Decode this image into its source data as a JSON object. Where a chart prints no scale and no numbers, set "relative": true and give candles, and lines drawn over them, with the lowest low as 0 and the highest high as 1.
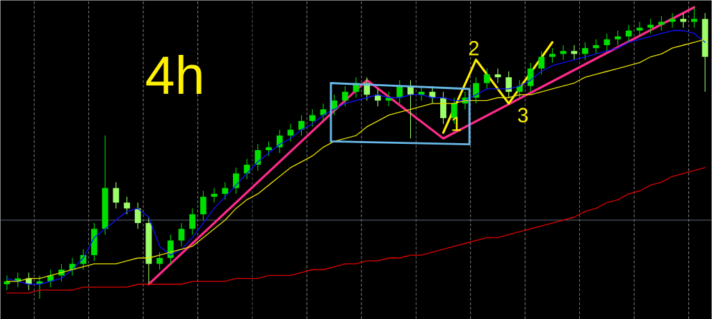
{
  "chart_data": {
    "type": "candlestick",
    "relative": true,
    "grid": "x",
    "categories": [
      null,
      null,
      null,
      null,
      null,
      null,
      null,
      null,
      null,
      null,
      null,
      null,
      null,
      null,
      null,
      null,
      null,
      null,
      null,
      null,
      null,
      null,
      null,
      null,
      null,
      null,
      null,
      null,
      null,
      null,
      null,
      null,
      null,
      null,
      null,
      null,
      null,
      null,
      null,
      null,
      null,
      null,
      null,
      null,
      null,
      null,
      null,
      null,
      null,
      null,
      null,
      null,
      null,
      null,
      null,
      null,
      null,
      null,
      null,
      null,
      null,
      null,
      null,
      null,
      null
    ],
    "ohlc": [
      [
        0.05,
        0.08,
        0.03,
        0.06
      ],
      [
        0.06,
        0.09,
        0.04,
        0.07
      ],
      [
        0.07,
        0.09,
        0.03,
        0.05
      ],
      [
        0.05,
        0.08,
        0.0,
        0.06
      ],
      [
        0.06,
        0.1,
        0.04,
        0.08
      ],
      [
        0.08,
        0.12,
        0.06,
        0.1
      ],
      [
        0.1,
        0.14,
        0.08,
        0.12
      ],
      [
        0.12,
        0.17,
        0.1,
        0.15
      ],
      [
        0.15,
        0.26,
        0.13,
        0.24
      ],
      [
        0.24,
        0.56,
        0.22,
        0.38
      ],
      [
        0.38,
        0.4,
        0.31,
        0.33
      ],
      [
        0.33,
        0.35,
        0.29,
        0.31
      ],
      [
        0.31,
        0.33,
        0.24,
        0.26
      ],
      [
        0.26,
        0.28,
        0.05,
        0.12
      ],
      [
        0.12,
        0.16,
        0.1,
        0.14
      ],
      [
        0.14,
        0.22,
        0.12,
        0.2
      ],
      [
        0.2,
        0.26,
        0.18,
        0.24
      ],
      [
        0.24,
        0.31,
        0.22,
        0.29
      ],
      [
        0.29,
        0.37,
        0.27,
        0.35
      ],
      [
        0.35,
        0.38,
        0.33,
        0.36
      ],
      [
        0.36,
        0.4,
        0.34,
        0.38
      ],
      [
        0.38,
        0.45,
        0.36,
        0.43
      ],
      [
        0.43,
        0.48,
        0.41,
        0.46
      ],
      [
        0.46,
        0.53,
        0.44,
        0.51
      ],
      [
        0.51,
        0.54,
        0.49,
        0.52
      ],
      [
        0.52,
        0.58,
        0.5,
        0.56
      ],
      [
        0.56,
        0.6,
        0.54,
        0.58
      ],
      [
        0.58,
        0.63,
        0.56,
        0.61
      ],
      [
        0.61,
        0.65,
        0.59,
        0.63
      ],
      [
        0.63,
        0.67,
        0.61,
        0.65
      ],
      [
        0.65,
        0.7,
        0.63,
        0.68
      ],
      [
        0.68,
        0.73,
        0.66,
        0.71
      ],
      [
        0.71,
        0.76,
        0.69,
        0.74
      ],
      [
        0.74,
        0.76,
        0.68,
        0.7
      ],
      [
        0.7,
        0.72,
        0.66,
        0.68
      ],
      [
        0.68,
        0.71,
        0.66,
        0.69
      ],
      [
        0.69,
        0.75,
        0.67,
        0.73
      ],
      [
        0.73,
        0.75,
        0.55,
        0.7
      ],
      [
        0.7,
        0.73,
        0.68,
        0.71
      ],
      [
        0.71,
        0.73,
        0.67,
        0.69
      ],
      [
        0.69,
        0.71,
        0.6,
        0.62
      ],
      [
        0.62,
        0.69,
        0.6,
        0.67
      ],
      [
        0.67,
        0.71,
        0.65,
        0.69
      ],
      [
        0.69,
        0.76,
        0.67,
        0.74
      ],
      [
        0.74,
        0.79,
        0.72,
        0.77
      ],
      [
        0.77,
        0.79,
        0.74,
        0.76
      ],
      [
        0.76,
        0.78,
        0.69,
        0.71
      ],
      [
        0.71,
        0.75,
        0.69,
        0.73
      ],
      [
        0.73,
        0.81,
        0.71,
        0.79
      ],
      [
        0.79,
        0.85,
        0.77,
        0.83
      ],
      [
        0.83,
        0.86,
        0.81,
        0.84
      ],
      [
        0.84,
        0.87,
        0.82,
        0.85
      ],
      [
        0.85,
        0.87,
        0.82,
        0.84
      ],
      [
        0.84,
        0.88,
        0.82,
        0.86
      ],
      [
        0.86,
        0.89,
        0.84,
        0.87
      ],
      [
        0.87,
        0.91,
        0.85,
        0.89
      ],
      [
        0.89,
        0.92,
        0.87,
        0.9
      ],
      [
        0.9,
        0.94,
        0.88,
        0.92
      ],
      [
        0.92,
        0.95,
        0.9,
        0.93
      ],
      [
        0.93,
        0.96,
        0.91,
        0.94
      ],
      [
        0.94,
        0.97,
        0.92,
        0.95
      ],
      [
        0.95,
        0.98,
        0.93,
        0.96
      ],
      [
        0.96,
        0.98,
        0.93,
        0.95
      ],
      [
        0.95,
        1.0,
        0.93,
        0.96
      ],
      [
        0.96,
        0.98,
        0.71,
        0.83
      ]
    ],
    "series": [
      {
        "type": "line",
        "color": "#1010ff",
        "values": [
          0.07,
          0.06,
          0.05,
          0.05,
          0.06,
          0.07,
          0.1,
          0.14,
          0.21,
          0.24,
          0.27,
          0.3,
          0.31,
          0.28,
          0.18,
          0.15,
          0.17,
          0.21,
          0.26,
          0.31,
          0.35,
          0.39,
          0.43,
          0.47,
          0.5,
          0.53,
          0.55,
          0.58,
          0.6,
          0.63,
          0.65,
          0.67,
          0.68,
          0.69,
          0.7,
          0.69,
          0.69,
          0.7,
          0.7,
          0.69,
          0.69,
          0.68,
          0.68,
          0.7,
          0.72,
          0.72,
          0.72,
          0.73,
          0.75,
          0.78,
          0.8,
          0.81,
          0.82,
          0.83,
          0.84,
          0.85,
          0.86,
          0.88,
          0.89,
          0.9,
          0.91,
          0.92,
          0.92,
          0.91,
          0.88
        ]
      },
      {
        "type": "line",
        "color": "#e8e000",
        "values": [
          0.06,
          0.06,
          0.07,
          0.07,
          0.08,
          0.09,
          0.1,
          0.11,
          0.12,
          0.12,
          0.12,
          0.13,
          0.14,
          0.14,
          0.15,
          0.16,
          0.17,
          0.18,
          0.21,
          0.24,
          0.27,
          0.31,
          0.34,
          0.36,
          0.39,
          0.42,
          0.45,
          0.47,
          0.49,
          0.52,
          0.54,
          0.55,
          0.56,
          0.59,
          0.61,
          0.63,
          0.64,
          0.65,
          0.66,
          0.67,
          0.67,
          0.67,
          0.68,
          0.68,
          0.68,
          0.69,
          0.69,
          0.7,
          0.7,
          0.71,
          0.72,
          0.73,
          0.74,
          0.76,
          0.77,
          0.78,
          0.79,
          0.8,
          0.81,
          0.83,
          0.84,
          0.86,
          0.87,
          0.88,
          0.89
        ]
      },
      {
        "type": "line",
        "color": "#e00000",
        "values": [
          0.02,
          0.02,
          0.02,
          0.03,
          0.03,
          0.03,
          0.03,
          0.04,
          0.04,
          0.04,
          0.04,
          0.04,
          0.05,
          0.05,
          0.05,
          0.05,
          0.05,
          0.06,
          0.06,
          0.06,
          0.06,
          0.07,
          0.07,
          0.07,
          0.08,
          0.08,
          0.08,
          0.09,
          0.1,
          0.1,
          0.11,
          0.12,
          0.12,
          0.13,
          0.13,
          0.14,
          0.14,
          0.15,
          0.15,
          0.16,
          0.17,
          0.18,
          0.19,
          0.2,
          0.21,
          0.21,
          0.22,
          0.23,
          0.24,
          0.25,
          0.26,
          0.27,
          0.28,
          0.3,
          0.31,
          0.33,
          0.34,
          0.36,
          0.37,
          0.39,
          0.4,
          0.42,
          0.43,
          0.44,
          0.45
        ]
      },
      {
        "type": "line",
        "color": "#ff2a8c",
        "values": [
          null,
          null,
          null,
          null,
          null,
          null,
          null,
          null,
          null,
          null,
          null,
          null,
          null,
          0.05,
          null,
          null,
          null,
          null,
          null,
          null,
          null,
          null,
          null,
          null,
          null,
          null,
          null,
          null,
          null,
          null,
          null,
          null,
          null,
          0.75,
          null,
          null,
          null,
          null,
          null,
          null,
          0.55,
          null,
          null,
          null,
          null,
          null,
          null,
          null,
          null,
          null,
          null,
          null,
          null,
          null,
          null,
          null,
          null,
          null,
          null,
          null,
          null,
          null,
          null,
          1.0,
          null
        ]
      },
      {
        "type": "line",
        "color": "#ffee00",
        "values": [
          null,
          null,
          null,
          null,
          null,
          null,
          null,
          null,
          null,
          null,
          null,
          null,
          null,
          null,
          null,
          null,
          null,
          null,
          null,
          null,
          null,
          null,
          null,
          null,
          null,
          null,
          null,
          null,
          null,
          null,
          null,
          null,
          null,
          null,
          null,
          null,
          null,
          null,
          null,
          null,
          0.57,
          null,
          null,
          0.82,
          null,
          null,
          0.67,
          null,
          null,
          null,
          0.88,
          null,
          null,
          null,
          null,
          null,
          null,
          null,
          null,
          null,
          null,
          null,
          null,
          null,
          null
        ]
      }
    ],
    "ref_lines": [
      {
        "axis": "y",
        "value": 0.27,
        "color": "#5f6b78"
      }
    ],
    "annotations": [
      "4h",
      "1",
      "2",
      "3"
    ]
  }
}
